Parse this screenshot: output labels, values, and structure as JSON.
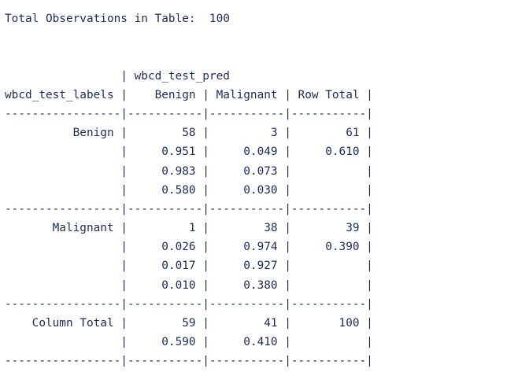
{
  "summary_line": "Total Observations in Table:  100",
  "table_lines": [
    "",
    "",
    "                 | wbcd_test_pred ",
    "wbcd_test_labels |    Benign | Malignant | Row Total | ",
    "-----------------|-----------|-----------|-----------|",
    "          Benign |        58 |         3 |        61 | ",
    "                 |     0.951 |     0.049 |     0.610 | ",
    "                 |     0.983 |     0.073 |           | ",
    "                 |     0.580 |     0.030 |           | ",
    "-----------------|-----------|-----------|-----------|",
    "       Malignant |         1 |        38 |        39 | ",
    "                 |     0.026 |     0.974 |     0.390 | ",
    "                 |     0.017 |     0.927 |           | ",
    "                 |     0.010 |     0.380 |           | ",
    "-----------------|-----------|-----------|-----------|",
    "    Column Total |        59 |        41 |       100 | ",
    "                 |     0.590 |     0.410 |           | ",
    "-----------------|-----------|-----------|-----------|"
  ]
}
